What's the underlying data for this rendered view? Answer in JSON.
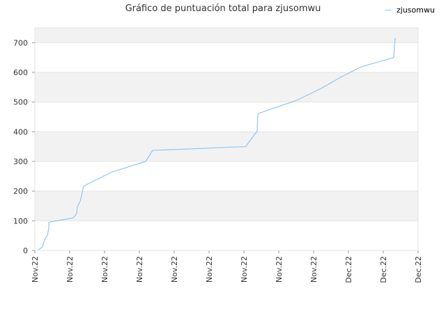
{
  "chart_data": {
    "type": "line",
    "title": "Gráfico de puntuación total para zjusomwu",
    "xlabel": "",
    "ylabel": "",
    "ylim": [
      0,
      750
    ],
    "yticks": [
      0,
      100,
      200,
      300,
      400,
      500,
      600,
      700
    ],
    "ytick_labels": [
      "0",
      "100",
      "200",
      "300",
      "400",
      "500",
      "600",
      "700"
    ],
    "xlim": [
      0,
      11
    ],
    "xticks": [
      0,
      1,
      2,
      3,
      4,
      5,
      6,
      7,
      8,
      9,
      10,
      11
    ],
    "xtick_labels": [
      "Nov.22",
      "Nov.22",
      "Nov.22",
      "Nov.22",
      "Nov.22",
      "Nov.22",
      "Nov.22",
      "Nov.22",
      "Nov.22",
      "Dec.22",
      "Dec.22",
      "Dec.22"
    ],
    "grid": true,
    "legend_position": "top-right",
    "series": [
      {
        "name": "zjusomwu",
        "color": "#8ec7f2",
        "x": [
          0.1,
          0.22,
          0.28,
          0.32,
          0.36,
          0.4,
          0.4,
          0.45,
          1.1,
          1.2,
          1.22,
          1.3,
          1.36,
          1.4,
          1.42,
          2.2,
          3.18,
          3.38,
          4.0,
          5.0,
          6.05,
          6.38,
          6.4,
          7.5,
          8.2,
          8.8,
          9.35,
          10.3,
          10.32,
          10.34
        ],
        "y": [
          2,
          12,
          35,
          45,
          50,
          75,
          93,
          96,
          110,
          125,
          148,
          165,
          195,
          216,
          218,
          264,
          300,
          337,
          340,
          345,
          350,
          402,
          461,
          505,
          545,
          585,
          618,
          650,
          690,
          715
        ]
      }
    ]
  }
}
